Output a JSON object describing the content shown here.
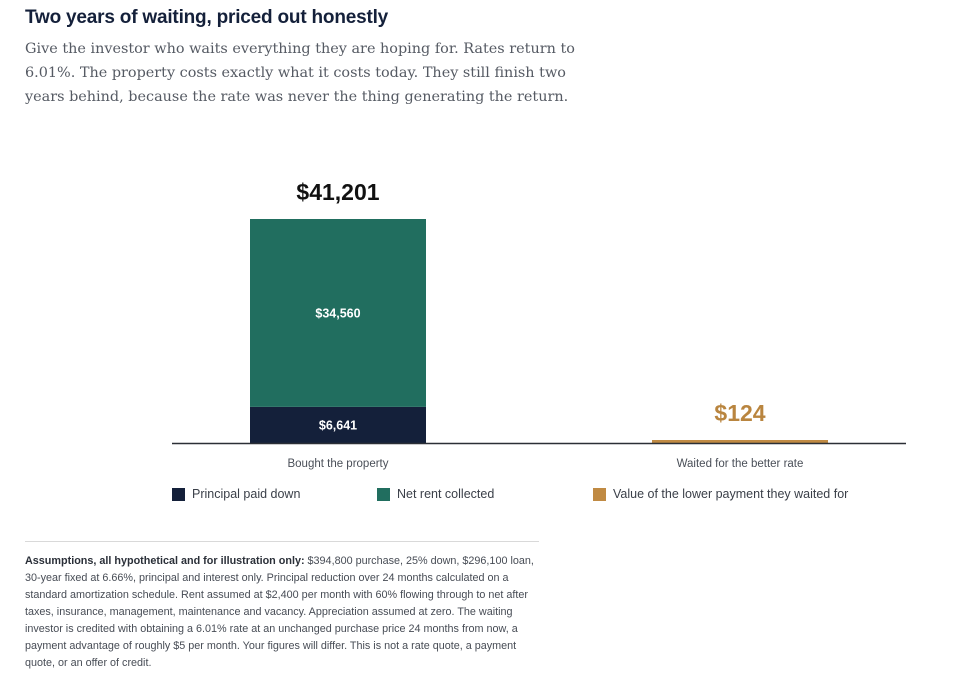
{
  "header": {
    "title": "Two years of waiting, priced out honestly",
    "subtitle": "Give the investor who waits everything they are hoping for. Rates return to 6.01%. The property costs exactly what it costs today. They still finish two years behind, because the rate was never the thing generating the return."
  },
  "chart_data": {
    "type": "bar",
    "stacked": true,
    "categories": [
      "Bought the property",
      "Waited for the better rate"
    ],
    "series": [
      {
        "name": "Principal paid down",
        "values": [
          6641,
          0
        ],
        "color": "#14203a",
        "labels": [
          "$6,641",
          ""
        ]
      },
      {
        "name": "Net rent collected",
        "values": [
          34560,
          0
        ],
        "color": "#216e5f",
        "labels": [
          "$34,560",
          ""
        ]
      },
      {
        "name": "Value of the lower payment they waited for",
        "values": [
          0,
          124
        ],
        "color": "#c08a43",
        "labels": [
          "",
          ""
        ]
      }
    ],
    "totals": [
      "$41,201",
      "$124"
    ],
    "total_colors": [
      "#111111",
      "#b9853f"
    ],
    "ylim": [
      0,
      41201
    ],
    "grid": false,
    "legend": "bottom"
  },
  "assumptions": {
    "lead": "Assumptions, all hypothetical and for illustration only:",
    "text": " $394,800 purchase, 25% down, $296,100 loan, 30-year fixed at 6.66%, principal and interest only. Principal reduction over 24 months calculated on a standard amortization schedule. Rent assumed at $2,400 per month with 60% flowing through to net after taxes, insurance, management, maintenance and vacancy. Appreciation assumed at zero. The waiting investor is credited with obtaining a 6.01% rate at an unchanged purchase price 24 months from now, a payment advantage of roughly $5 per month. Your figures will differ. This is not a rate quote, a payment quote, or an offer of credit."
  }
}
